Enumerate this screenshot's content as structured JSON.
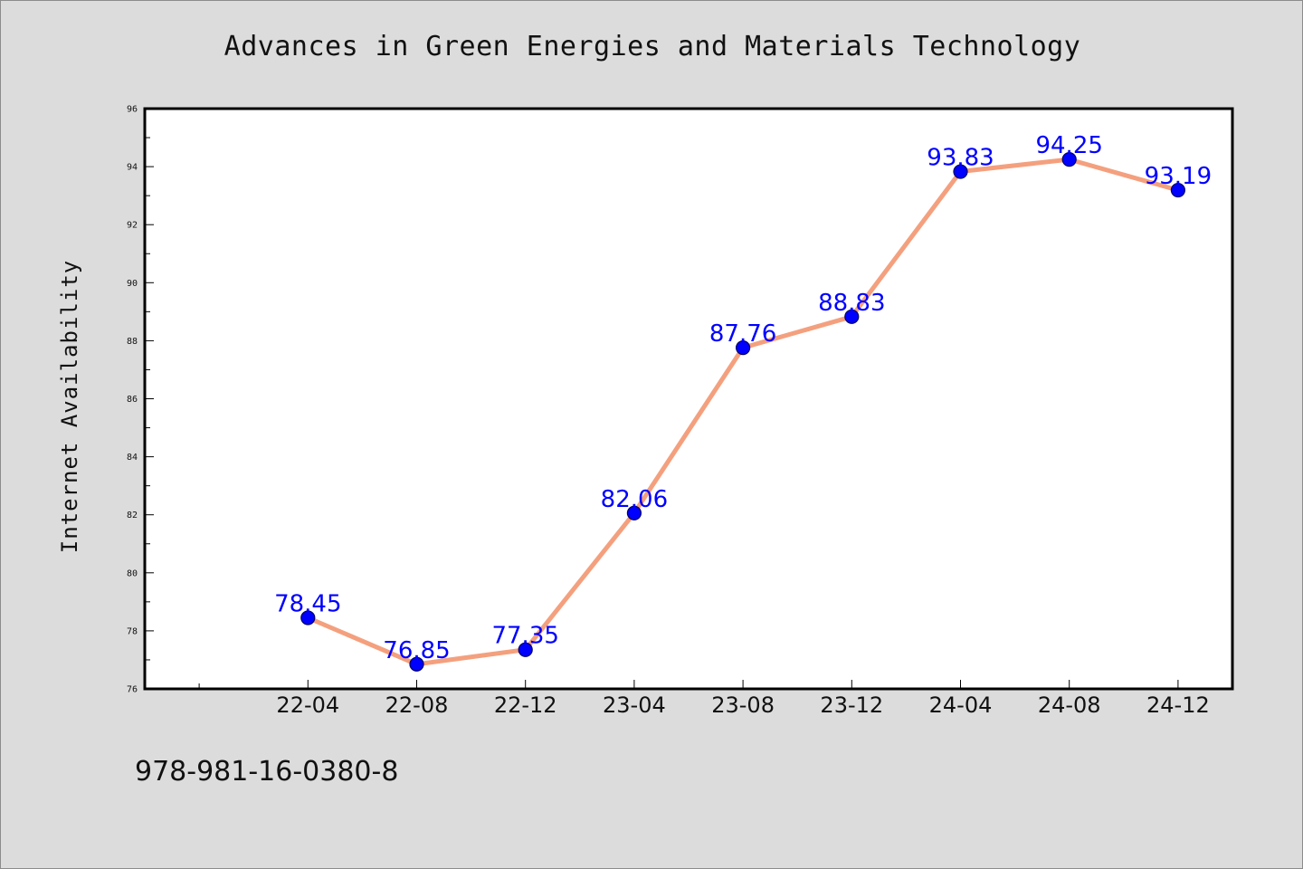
{
  "colors": {
    "figure_bg": "#dcdcdc",
    "plot_bg": "#ffffff",
    "line": "#f4a07e",
    "marker_fill": "#0000ff",
    "marker_edge": "#000066",
    "data_label": "#0000ff",
    "axis": "#000000"
  },
  "footer": {
    "text": "978-981-16-0380-8"
  },
  "chart_data": {
    "type": "line",
    "title": "Advances in Green Energies and Materials Technology",
    "xlabel": "",
    "ylabel": "Internet Availability",
    "categories": [
      "22-04",
      "22-08",
      "22-12",
      "23-04",
      "23-08",
      "23-12",
      "24-04",
      "24-08",
      "24-12"
    ],
    "x_pad_before": 1.5,
    "x_pad_after": 0.5,
    "series": [
      {
        "values": [
          78.45,
          76.85,
          77.35,
          82.06,
          87.76,
          88.83,
          93.83,
          94.25,
          93.19
        ],
        "labels": [
          "78.45",
          "76.85",
          "77.35",
          "82.06",
          "87.76",
          "88.83",
          "93.83",
          "94.25",
          "93.19"
        ]
      }
    ],
    "ylim": [
      76,
      96
    ],
    "yticks": [
      76,
      78,
      80,
      82,
      84,
      86,
      88,
      90,
      92,
      94,
      96
    ],
    "y_minor_step": 1,
    "grid": false,
    "legend": "none",
    "markers": "circle",
    "data_labels": true
  }
}
